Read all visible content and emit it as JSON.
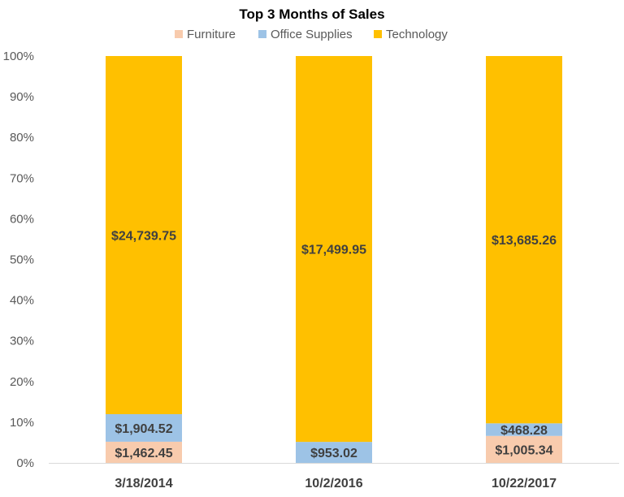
{
  "chart_data": {
    "type": "bar",
    "stacked": "percent",
    "title": "Top 3 Months of Sales",
    "legend_position": "top",
    "categories": [
      "3/18/2014",
      "10/2/2016",
      "10/22/2017"
    ],
    "series": [
      {
        "name": "Furniture",
        "color": "#f8cbad",
        "values": [
          1462.45,
          0,
          1005.34
        ],
        "labels": [
          "$1,462.45",
          "",
          "$1,005.34"
        ]
      },
      {
        "name": "Office Supplies",
        "color": "#9dc3e6",
        "values": [
          1904.52,
          953.02,
          468.28
        ],
        "labels": [
          "$1,904.52",
          "$953.02",
          "$468.28"
        ]
      },
      {
        "name": "Technology",
        "color": "#ffc000",
        "values": [
          24739.75,
          17499.95,
          13685.26
        ],
        "labels": [
          "$24,739.75",
          "$17,499.95",
          "$13,685.26"
        ]
      }
    ],
    "y_ticks": [
      "0%",
      "10%",
      "20%",
      "30%",
      "40%",
      "50%",
      "60%",
      "70%",
      "80%",
      "90%",
      "100%"
    ],
    "ylim": [
      0,
      100
    ],
    "grid": false
  }
}
